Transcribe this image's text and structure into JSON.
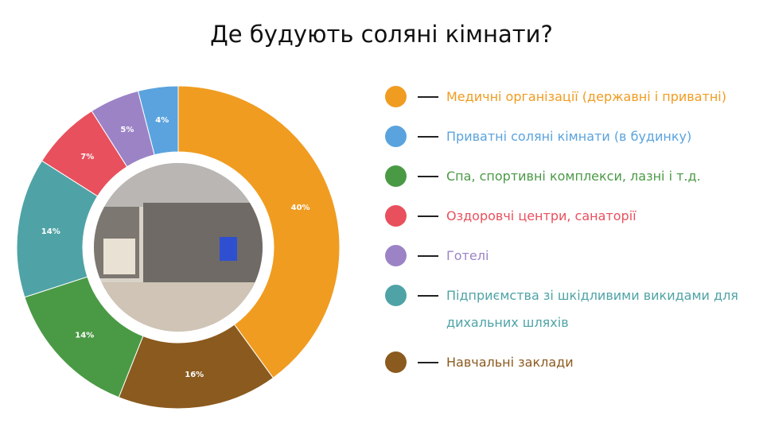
{
  "chart_data": {
    "type": "donut",
    "title": "Де будують соляні кімнати?",
    "series": [
      {
        "name": "Медичні організації (державні і приватні)",
        "color": "#f09c21",
        "values": [
          40
        ],
        "value_labels": [
          "40%"
        ]
      },
      {
        "name": "Приватні соляні кімнати (в будинку)",
        "color": "#5aa3de",
        "values": [
          4
        ],
        "value_labels": [
          "4%"
        ]
      },
      {
        "name": "Спа, спортивні комплекси, лазні і т.д.",
        "color": "#4a9a45",
        "values": [
          14
        ],
        "value_labels": [
          "14%"
        ]
      },
      {
        "name": "Оздоровчі центри, санаторії",
        "color": "#e8505d",
        "values": [
          7
        ],
        "value_labels": [
          "7%"
        ]
      },
      {
        "name": "Готелі",
        "color": "#9c83c6",
        "values": [
          5
        ],
        "value_labels": [
          "5%"
        ]
      },
      {
        "name": "Підприємства зі шкідливими викидами для дихальних шляхів",
        "color": "#4fa3a6",
        "values": [
          14
        ],
        "value_labels": [
          "14%"
        ]
      },
      {
        "name": "Навчальні заклади",
        "color": "#8b5a1e",
        "values": [
          16
        ],
        "value_labels": [
          "16%"
        ]
      }
    ]
  }
}
